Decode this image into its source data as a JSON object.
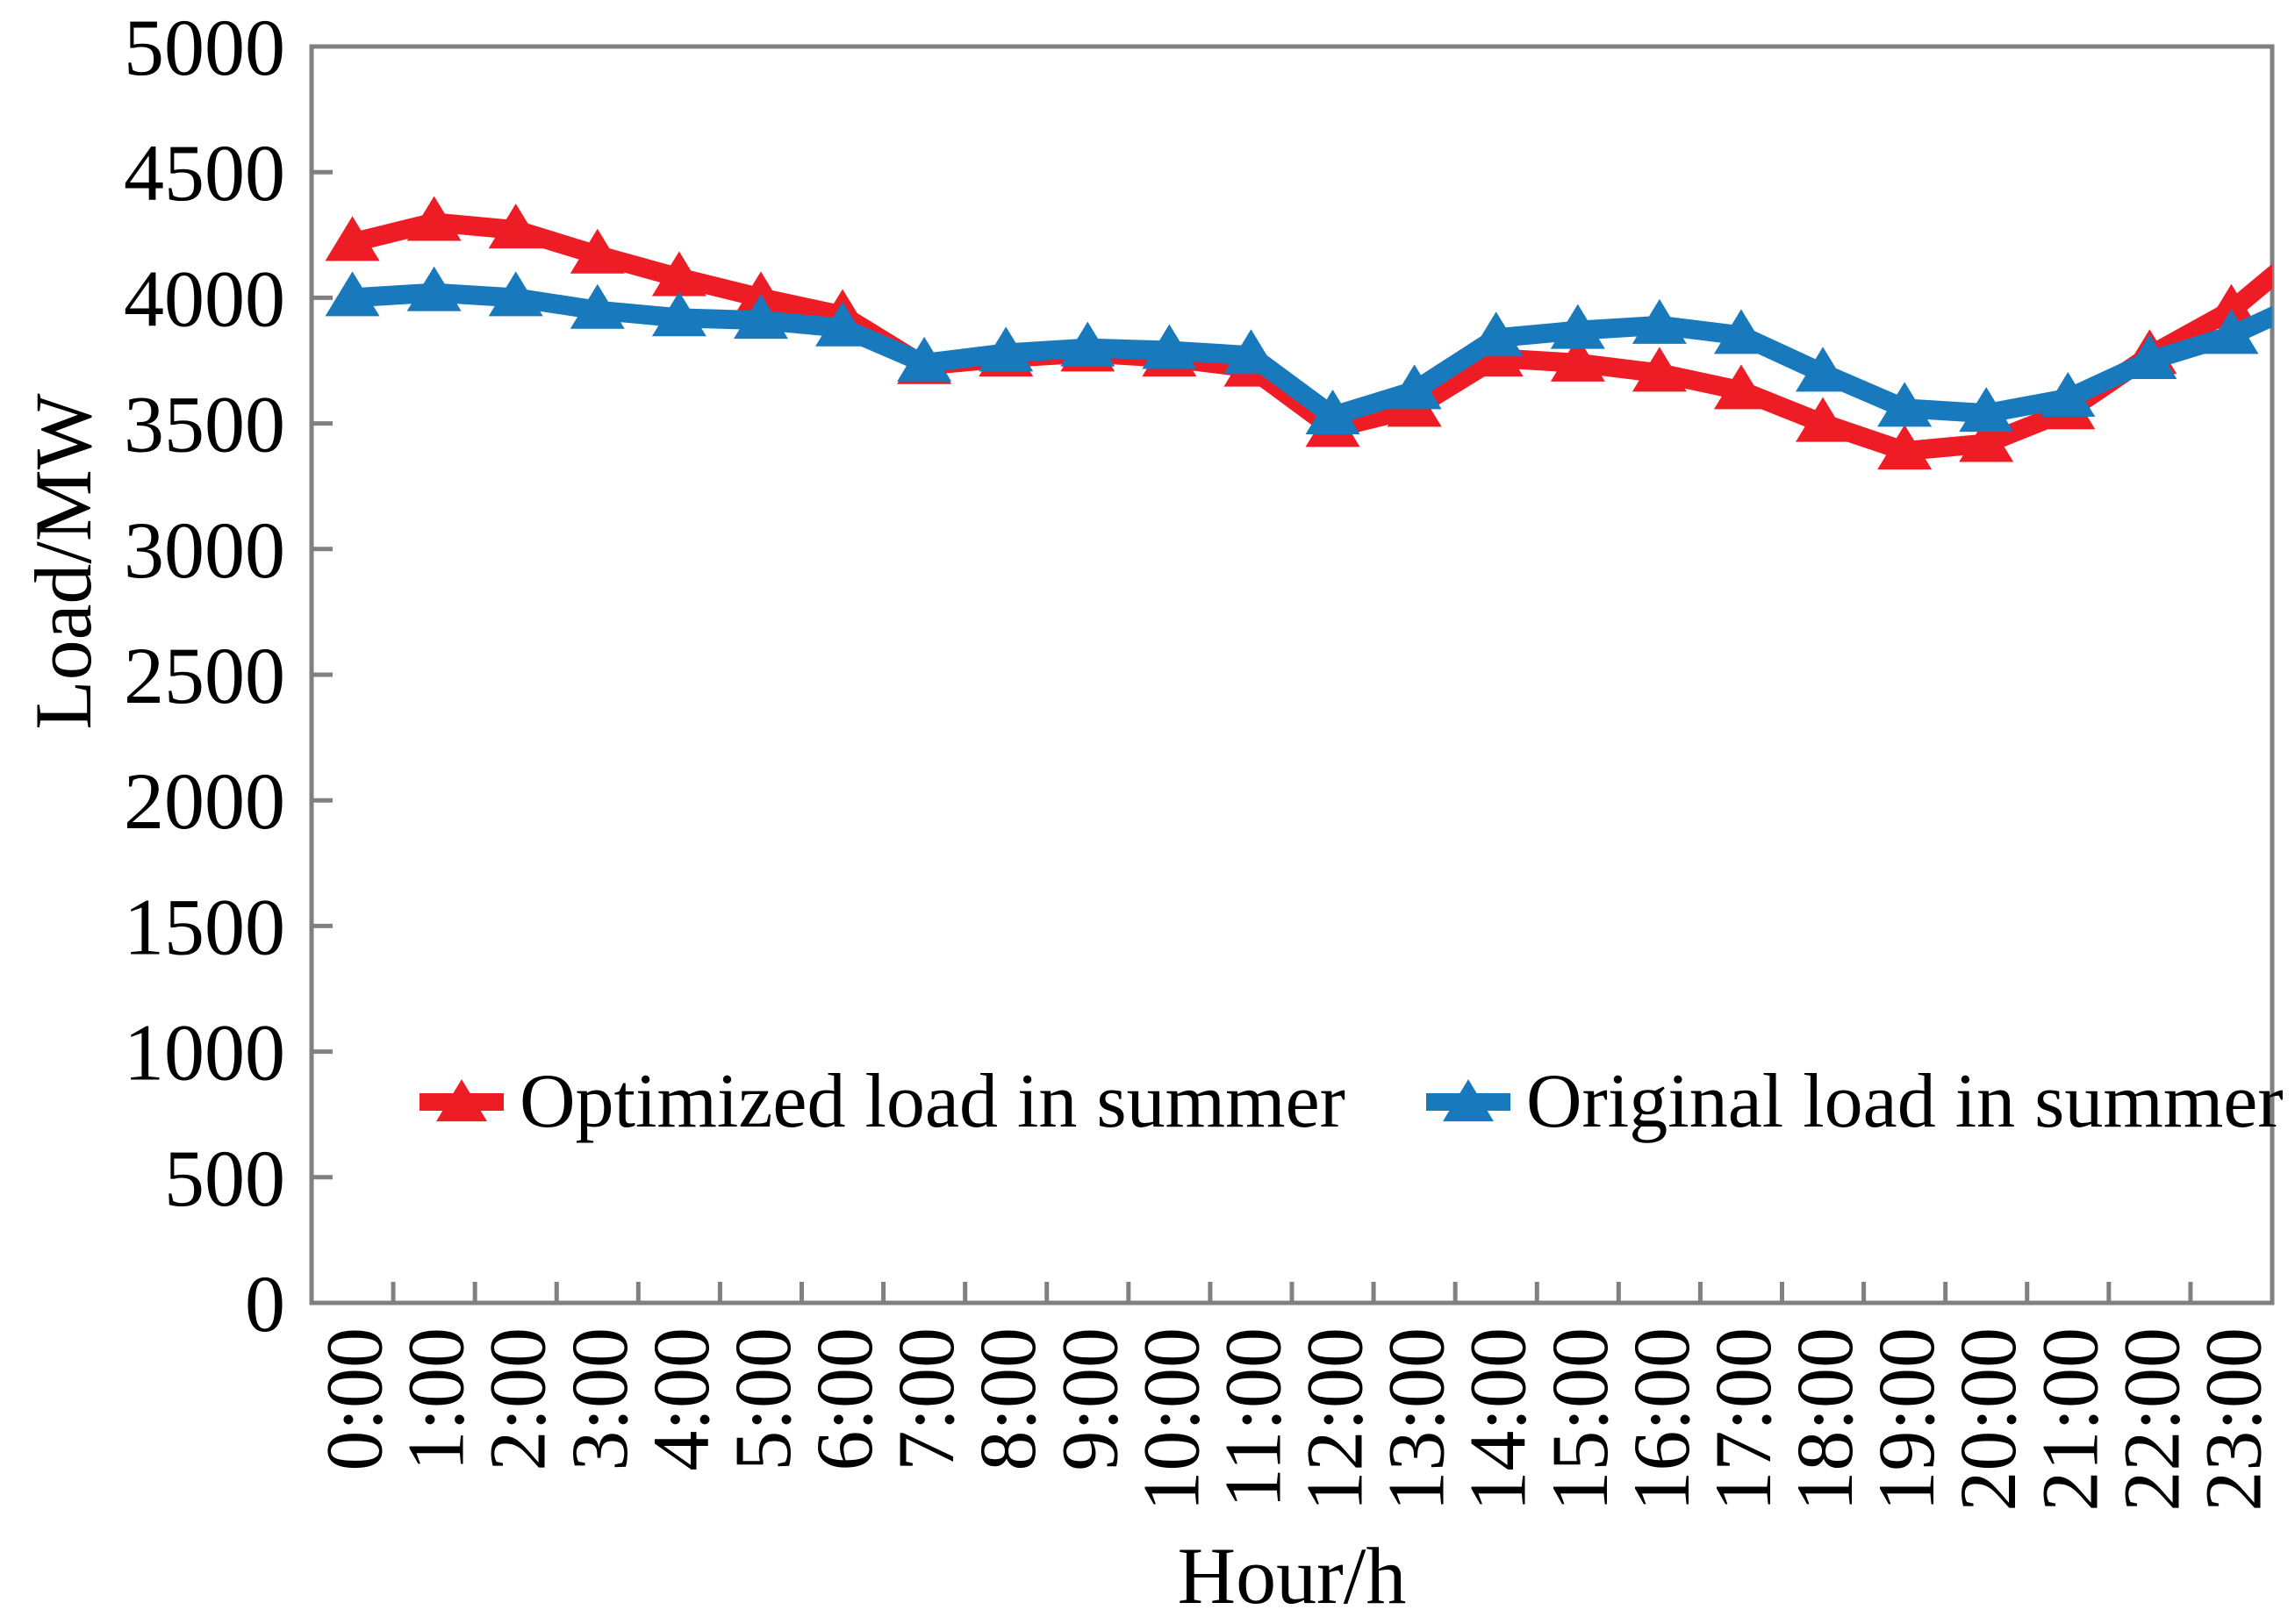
{
  "chart_data": {
    "type": "line",
    "title": "",
    "xlabel": "Hour/h",
    "ylabel": "Load/MW",
    "categories": [
      "0:00",
      "1:00",
      "2:00",
      "3:00",
      "4:00",
      "5:00",
      "6:00",
      "7:00",
      "8:00",
      "9:00",
      "10:00",
      "11:00",
      "12:00",
      "13:00",
      "14:00",
      "15:00",
      "16:00",
      "17:00",
      "18:00",
      "19:00",
      "20:00",
      "21:00",
      "22:00",
      "23:00"
    ],
    "series": [
      {
        "name": "Optimized load in summer",
        "color": "#ee1c25",
        "marker": "triangle",
        "values": [
          4220,
          4300,
          4270,
          4170,
          4080,
          4000,
          3930,
          3730,
          3760,
          3780,
          3760,
          3720,
          3480,
          3560,
          3760,
          3740,
          3700,
          3630,
          3500,
          3390,
          3420,
          3550,
          3770,
          3950
        ],
        "tail_value_at_right_edge": 4220
      },
      {
        "name": "Original load in summer",
        "color": "#1879bd",
        "marker": "triangle",
        "values": [
          4000,
          4020,
          4000,
          3950,
          3920,
          3910,
          3880,
          3740,
          3780,
          3800,
          3790,
          3770,
          3530,
          3630,
          3840,
          3870,
          3890,
          3850,
          3700,
          3560,
          3540,
          3600,
          3750,
          3850
        ],
        "tail_value_at_right_edge": 4000
      }
    ],
    "ylim": [
      0,
      5000
    ],
    "ytick_step": 500,
    "ytick_labels": [
      "0",
      "500",
      "1000",
      "1500",
      "2000",
      "2500",
      "3000",
      "3500",
      "4000",
      "4500",
      "5000"
    ],
    "grid": false,
    "legend_position": "inside-bottom",
    "axis_color": "#808080"
  }
}
